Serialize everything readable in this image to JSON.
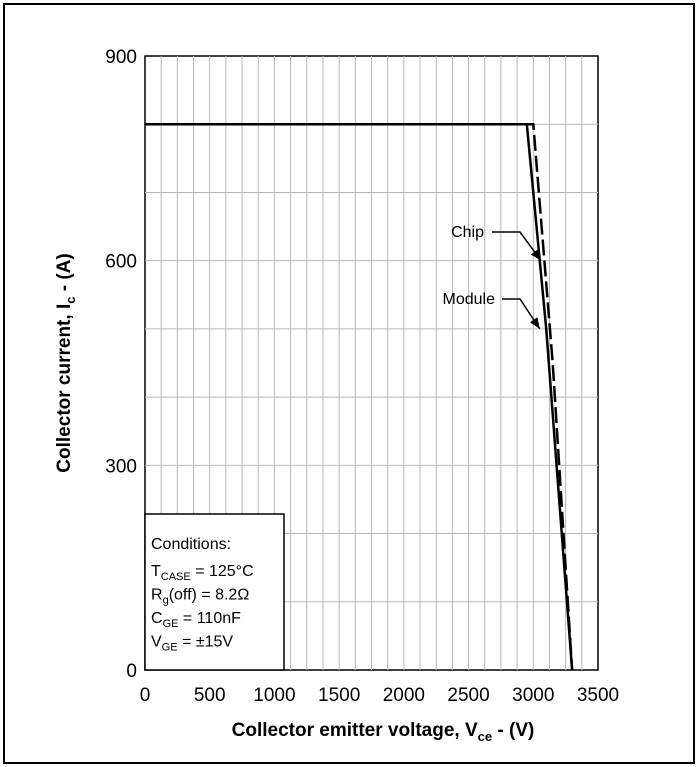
{
  "chart_data": {
    "type": "line",
    "title": "",
    "xlabel": {
      "main": "Collector emitter voltage, V",
      "sub": "ce",
      "tail": " - (V)"
    },
    "ylabel": {
      "main": "Collector current, I",
      "sub": "c",
      "tail": " - (A)"
    },
    "xlim": [
      0,
      3500
    ],
    "ylim": [
      0,
      900
    ],
    "xticks": [
      0,
      500,
      1000,
      1500,
      2000,
      2500,
      3000,
      3500
    ],
    "yticks": [
      0,
      300,
      600,
      900
    ],
    "grid": true,
    "series": [
      {
        "name": "Chip",
        "style": "dashed",
        "x": [
          0,
          3000,
          3150,
          3300
        ],
        "y": [
          800,
          800,
          450,
          0
        ]
      },
      {
        "name": "Module",
        "style": "solid",
        "x": [
          0,
          2950,
          3100,
          3300
        ],
        "y": [
          800,
          800,
          500,
          0
        ]
      }
    ],
    "annotations": [
      {
        "label": "Chip",
        "points_to": {
          "x": 3060,
          "y": 600
        }
      },
      {
        "label": "Module",
        "points_to": {
          "x": 3050,
          "y": 500
        }
      }
    ],
    "conditions_box": {
      "title": "Conditions:",
      "lines": [
        {
          "main": "T",
          "sub": "CASE",
          "tail": " = 125°C"
        },
        {
          "main": "R",
          "sub": "g",
          "tail": "(off) = 8.2Ω"
        },
        {
          "main": "C",
          "sub": "GE",
          "tail": " = 110nF"
        },
        {
          "main": "V",
          "sub": "GE",
          "tail": " = ±15V"
        }
      ]
    }
  }
}
